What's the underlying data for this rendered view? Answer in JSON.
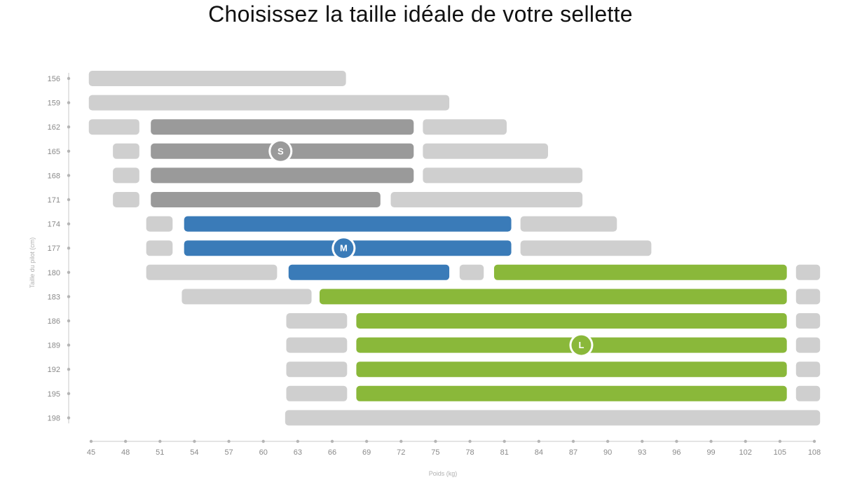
{
  "title": "Choisissez la taille idéale de votre sellette",
  "colors": {
    "neutral": "#cfcfcf",
    "S": "#9a9a9a",
    "M": "#3a7bb8",
    "L": "#8ab83a",
    "axis": "#c8c8c8"
  },
  "chart_data": {
    "type": "bar",
    "subtype": "range-bar",
    "title": "Choisissez la taille idéale de votre sellette",
    "xlabel": "Poids (kg)",
    "ylabel": "Taille du pilot (cm)",
    "xlim": [
      45,
      108
    ],
    "x_ticks": [
      45,
      48,
      51,
      54,
      57,
      60,
      63,
      66,
      69,
      72,
      75,
      78,
      81,
      84,
      87,
      90,
      93,
      96,
      99,
      102,
      105,
      108
    ],
    "y_ticks": [
      156,
      159,
      162,
      165,
      168,
      171,
      174,
      177,
      180,
      183,
      186,
      189,
      192,
      195,
      198
    ],
    "grid": false,
    "rows": [
      {
        "height": 156,
        "segments": [
          {
            "size": "neutral",
            "from": 44.8,
            "to": 67.2
          }
        ]
      },
      {
        "height": 159,
        "segments": [
          {
            "size": "neutral",
            "from": 44.8,
            "to": 76.2
          }
        ]
      },
      {
        "height": 162,
        "segments": [
          {
            "size": "neutral",
            "from": 44.8,
            "to": 49.2
          },
          {
            "size": "S",
            "from": 50.2,
            "to": 73.1
          },
          {
            "size": "neutral",
            "from": 73.9,
            "to": 81.2
          }
        ]
      },
      {
        "height": 165,
        "segments": [
          {
            "size": "neutral",
            "from": 46.9,
            "to": 49.2
          },
          {
            "size": "S",
            "from": 50.2,
            "to": 73.1
          },
          {
            "size": "neutral",
            "from": 73.9,
            "to": 84.8
          }
        ]
      },
      {
        "height": 168,
        "segments": [
          {
            "size": "neutral",
            "from": 46.9,
            "to": 49.2
          },
          {
            "size": "S",
            "from": 50.2,
            "to": 73.1
          },
          {
            "size": "neutral",
            "from": 73.9,
            "to": 87.8
          }
        ]
      },
      {
        "height": 171,
        "segments": [
          {
            "size": "neutral",
            "from": 46.9,
            "to": 49.2
          },
          {
            "size": "S",
            "from": 50.2,
            "to": 70.2
          },
          {
            "size": "neutral",
            "from": 71.1,
            "to": 87.8
          }
        ]
      },
      {
        "height": 174,
        "segments": [
          {
            "size": "neutral",
            "from": 49.8,
            "to": 52.1
          },
          {
            "size": "M",
            "from": 53.1,
            "to": 81.6
          },
          {
            "size": "neutral",
            "from": 82.4,
            "to": 90.8
          }
        ]
      },
      {
        "height": 177,
        "segments": [
          {
            "size": "neutral",
            "from": 49.8,
            "to": 52.1
          },
          {
            "size": "M",
            "from": 53.1,
            "to": 81.6
          },
          {
            "size": "neutral",
            "from": 82.4,
            "to": 93.8
          }
        ]
      },
      {
        "height": 180,
        "segments": [
          {
            "size": "neutral",
            "from": 49.8,
            "to": 61.2
          },
          {
            "size": "M",
            "from": 62.2,
            "to": 76.2
          },
          {
            "size": "neutral",
            "from": 77.1,
            "to": 79.2
          },
          {
            "size": "L",
            "from": 80.1,
            "to": 105.6
          },
          {
            "size": "neutral",
            "from": 106.4,
            "to": 108.5
          }
        ]
      },
      {
        "height": 183,
        "segments": [
          {
            "size": "neutral",
            "from": 52.9,
            "to": 64.2
          },
          {
            "size": "L",
            "from": 64.9,
            "to": 105.6
          },
          {
            "size": "neutral",
            "from": 106.4,
            "to": 108.5
          }
        ]
      },
      {
        "height": 186,
        "segments": [
          {
            "size": "neutral",
            "from": 62.0,
            "to": 67.3
          },
          {
            "size": "L",
            "from": 68.1,
            "to": 105.6
          },
          {
            "size": "neutral",
            "from": 106.4,
            "to": 108.5
          }
        ]
      },
      {
        "height": 189,
        "segments": [
          {
            "size": "neutral",
            "from": 62.0,
            "to": 67.3
          },
          {
            "size": "L",
            "from": 68.1,
            "to": 105.6
          },
          {
            "size": "neutral",
            "from": 106.4,
            "to": 108.5
          }
        ]
      },
      {
        "height": 192,
        "segments": [
          {
            "size": "neutral",
            "from": 62.0,
            "to": 67.3
          },
          {
            "size": "L",
            "from": 68.1,
            "to": 105.6
          },
          {
            "size": "neutral",
            "from": 106.4,
            "to": 108.5
          }
        ]
      },
      {
        "height": 195,
        "segments": [
          {
            "size": "neutral",
            "from": 62.0,
            "to": 67.3
          },
          {
            "size": "L",
            "from": 68.1,
            "to": 105.6
          },
          {
            "size": "neutral",
            "from": 106.4,
            "to": 108.5
          }
        ]
      },
      {
        "height": 198,
        "segments": [
          {
            "size": "neutral",
            "from": 61.9,
            "to": 108.5
          }
        ]
      }
    ],
    "markers": [
      {
        "label": "S",
        "weight": 61.5,
        "height": 165
      },
      {
        "label": "M",
        "weight": 67.0,
        "height": 177
      },
      {
        "label": "L",
        "weight": 87.7,
        "height": 189
      }
    ]
  }
}
